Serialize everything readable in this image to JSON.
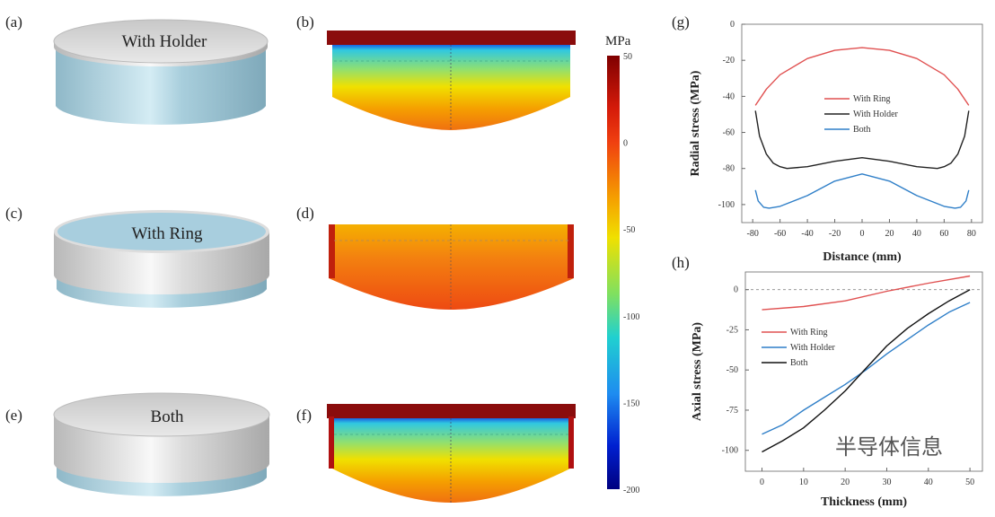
{
  "panels": {
    "a": {
      "label": "(a)",
      "text": "With Holder"
    },
    "b": {
      "label": "(b)"
    },
    "c": {
      "label": "(c)",
      "text": "With Ring"
    },
    "d": {
      "label": "(d)"
    },
    "e": {
      "label": "(e)",
      "text": "Both"
    },
    "f": {
      "label": "(f)"
    },
    "g": {
      "label": "(g)"
    },
    "h": {
      "label": "(h)"
    }
  },
  "colorbar": {
    "unit": "MPa",
    "ticks": [
      "50",
      "0",
      "-50",
      "-100",
      "-150",
      "-200"
    ],
    "range": [
      -200,
      50
    ]
  },
  "watermark": "半导体信息",
  "chart_data": [
    {
      "type": "line",
      "title": "",
      "xlabel": "Distance (mm)",
      "ylabel": "Radial stress (MPa)",
      "xlim": [
        -88,
        88
      ],
      "ylim": [
        -110,
        0
      ],
      "xticks": [
        "-80",
        "-60",
        "-40",
        "-20",
        "0",
        "20",
        "40",
        "60",
        "80"
      ],
      "yticks": [
        "0",
        "-20",
        "-40",
        "-60",
        "-80",
        "-100"
      ],
      "legend": "center",
      "series": [
        {
          "name": "With Ring",
          "color": "#e05050",
          "x": [
            -78,
            -70,
            -60,
            -40,
            -20,
            0,
            20,
            40,
            60,
            70,
            78
          ],
          "y": [
            -45,
            -36,
            -28,
            -19,
            -14.5,
            -13,
            -14.5,
            -19,
            -28,
            -36,
            -45
          ]
        },
        {
          "name": "With Holder",
          "color": "#222222",
          "x": [
            -78,
            -75,
            -70,
            -65,
            -60,
            -55,
            -40,
            -20,
            0,
            20,
            40,
            55,
            60,
            65,
            70,
            75,
            78
          ],
          "y": [
            -48,
            -62,
            -72,
            -77,
            -79,
            -80,
            -79,
            -76,
            -74,
            -76,
            -79,
            -80,
            -79,
            -77,
            -72,
            -62,
            -48
          ]
        },
        {
          "name": "Both",
          "color": "#2f7fc8",
          "x": [
            -78,
            -76,
            -72,
            -68,
            -60,
            -40,
            -20,
            0,
            20,
            40,
            60,
            68,
            72,
            76,
            78
          ],
          "y": [
            -92,
            -98,
            -101.5,
            -102,
            -101,
            -95,
            -87,
            -83,
            -87,
            -95,
            -101,
            -102,
            -101.5,
            -98,
            -92
          ]
        }
      ]
    },
    {
      "type": "line",
      "title": "",
      "xlabel": "Thickness (mm)",
      "ylabel": "Axial stress (MPa)",
      "xlim": [
        -4,
        53
      ],
      "ylim": [
        -113,
        11
      ],
      "xticks": [
        "0",
        "10",
        "20",
        "30",
        "40",
        "50"
      ],
      "yticks": [
        "0",
        "-25",
        "-50",
        "-75",
        "-100"
      ],
      "legend": "center-left",
      "series": [
        {
          "name": "With Ring",
          "color": "#e05050",
          "x": [
            0,
            10,
            20,
            30,
            40,
            50
          ],
          "y": [
            -12.5,
            -10.5,
            -7,
            -1,
            4,
            8.5
          ]
        },
        {
          "name": "With Holder",
          "color": "#2f7fc8",
          "x": [
            0,
            5,
            10,
            15,
            20,
            25,
            30,
            35,
            40,
            45,
            50
          ],
          "y": [
            -90,
            -84,
            -75,
            -67,
            -59,
            -50,
            -40,
            -31,
            -22,
            -14,
            -8
          ]
        },
        {
          "name": "Both",
          "color": "#111111",
          "x": [
            0,
            5,
            10,
            15,
            20,
            25,
            30,
            35,
            40,
            45,
            50
          ],
          "y": [
            -101,
            -94,
            -86,
            -75,
            -63,
            -49,
            -35,
            -24,
            -15,
            -7,
            0
          ]
        }
      ]
    }
  ]
}
